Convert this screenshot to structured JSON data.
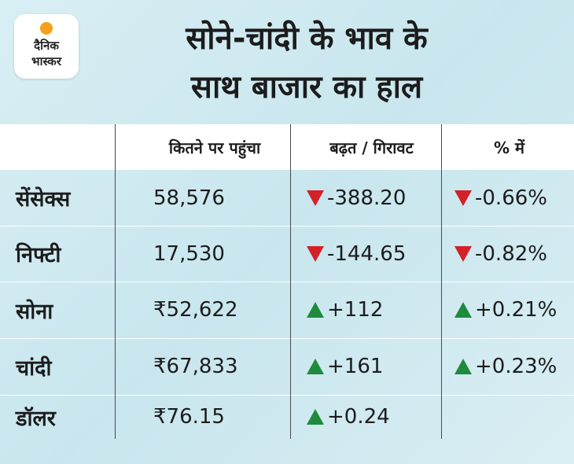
{
  "brand": {
    "line1": "दैनिक",
    "line2": "भास्कर",
    "sun_color": "#f5a01a"
  },
  "title": {
    "line1": "सोने-चांदी के भाव के",
    "line2": "साथ बाजार का हाल"
  },
  "table": {
    "headers": [
      "",
      "कितने पर पहुंचा",
      "बढ़त / गिरावट",
      "% में"
    ],
    "rows": [
      {
        "name": "सेंसेक्स",
        "value": "58,576",
        "change": "-388.20",
        "change_dir": "down",
        "pct": "-0.66%",
        "pct_dir": "down"
      },
      {
        "name": "निफ्टी",
        "value": "17,530",
        "change": "-144.65",
        "change_dir": "down",
        "pct": "-0.82%",
        "pct_dir": "down"
      },
      {
        "name": "सोना",
        "value": "₹52,622",
        "change": "+112",
        "change_dir": "up",
        "pct": "+0.21%",
        "pct_dir": "up"
      },
      {
        "name": "चांदी",
        "value": "₹67,833",
        "change": "+161",
        "change_dir": "up",
        "pct": "+0.23%",
        "pct_dir": "up"
      },
      {
        "name": "डॉलर",
        "value": "₹76.15",
        "change": "+0.24",
        "change_dir": "up",
        "pct": "",
        "pct_dir": ""
      }
    ]
  },
  "colors": {
    "down": "#d42027",
    "up": "#1f8a3c",
    "background": "#d3ecf1"
  }
}
